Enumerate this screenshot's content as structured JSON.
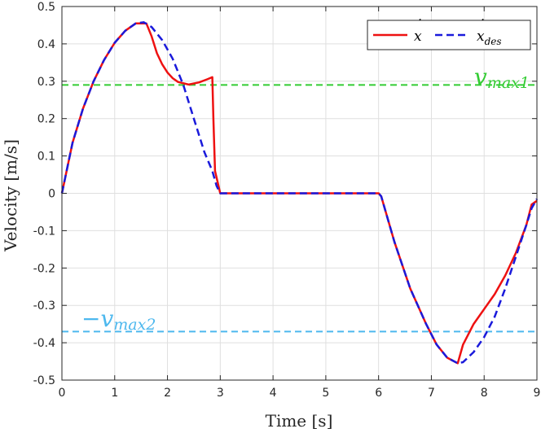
{
  "chart_data": {
    "type": "line",
    "xlabel": "Time [s]",
    "ylabel": "Velocity [m/s]",
    "xlim": [
      0,
      9
    ],
    "ylim": [
      -0.5,
      0.5
    ],
    "x_ticks": [
      0,
      1,
      2,
      3,
      4,
      5,
      6,
      7,
      8,
      9
    ],
    "y_ticks": [
      0.5,
      0.4,
      0.3,
      0.2,
      0.1,
      0,
      -0.1,
      -0.2,
      -0.3,
      -0.4,
      -0.5
    ],
    "x_tick_labels": [
      "0",
      "1",
      "2",
      "3",
      "4",
      "5",
      "6",
      "7",
      "8",
      "9"
    ],
    "y_tick_labels": [
      "0.5",
      "0.4",
      "0.3",
      "0.2",
      "0.1",
      "0",
      "-0.1",
      "-0.2",
      "-0.3",
      "-0.4",
      "-0.5"
    ],
    "grid": true,
    "legend_position": "top-right",
    "series": [
      {
        "name": "ẋ",
        "color": "#ee1111",
        "style": "solid",
        "x": [
          0,
          0.2,
          0.4,
          0.6,
          0.8,
          1.0,
          1.2,
          1.4,
          1.6,
          1.7,
          1.8,
          1.9,
          2.0,
          2.1,
          2.2,
          2.4,
          2.6,
          2.75,
          2.85,
          2.87,
          2.9,
          2.95,
          3.0,
          3.5,
          4.0,
          5.0,
          6.0,
          6.05,
          6.3,
          6.6,
          6.9,
          7.1,
          7.3,
          7.5,
          7.6,
          7.8,
          8.0,
          8.2,
          8.4,
          8.6,
          8.8,
          8.9,
          9.0
        ],
        "y": [
          0,
          0.135,
          0.227,
          0.3,
          0.357,
          0.403,
          0.435,
          0.455,
          0.455,
          0.42,
          0.375,
          0.345,
          0.323,
          0.308,
          0.298,
          0.291,
          0.297,
          0.305,
          0.311,
          0.2,
          0.06,
          0.03,
          0,
          0,
          0,
          0,
          0,
          -0.008,
          -0.13,
          -0.255,
          -0.35,
          -0.405,
          -0.44,
          -0.455,
          -0.405,
          -0.35,
          -0.31,
          -0.27,
          -0.22,
          -0.16,
          -0.085,
          -0.03,
          -0.02
        ]
      },
      {
        "name": "ẋdes",
        "color": "#1a1adb",
        "style": "dashed",
        "x": [
          0,
          0.2,
          0.4,
          0.6,
          0.8,
          1.0,
          1.2,
          1.4,
          1.55,
          1.7,
          1.9,
          2.1,
          2.3,
          2.5,
          2.7,
          2.85,
          2.93,
          3.0,
          3.5,
          4.0,
          5.0,
          6.0,
          6.05,
          6.3,
          6.6,
          6.9,
          7.1,
          7.3,
          7.5,
          7.6,
          7.8,
          8.0,
          8.2,
          8.4,
          8.6,
          8.8,
          8.9,
          9.0
        ],
        "y": [
          0,
          0.135,
          0.227,
          0.3,
          0.357,
          0.403,
          0.435,
          0.455,
          0.458,
          0.445,
          0.41,
          0.36,
          0.29,
          0.2,
          0.11,
          0.06,
          0.02,
          0,
          0,
          0,
          0,
          0,
          -0.008,
          -0.13,
          -0.255,
          -0.35,
          -0.405,
          -0.44,
          -0.455,
          -0.452,
          -0.425,
          -0.385,
          -0.33,
          -0.255,
          -0.17,
          -0.085,
          -0.04,
          -0.015
        ]
      }
    ],
    "reference_lines": [
      {
        "label": "vmax1",
        "y": 0.29,
        "color": "#33cc33"
      },
      {
        "label": "−vmax2",
        "y": -0.37,
        "color": "#4db8ee"
      }
    ],
    "annotations": {
      "upper_symbol": "v",
      "upper_subscript": "max1",
      "lower_symbol": "−v",
      "lower_subscript": "max2"
    },
    "legend": {
      "entry1_symbol": "x",
      "entry1_dot": "˙",
      "entry2_symbol": "x",
      "entry2_dot": "˙",
      "entry2_subscript": "des"
    }
  }
}
